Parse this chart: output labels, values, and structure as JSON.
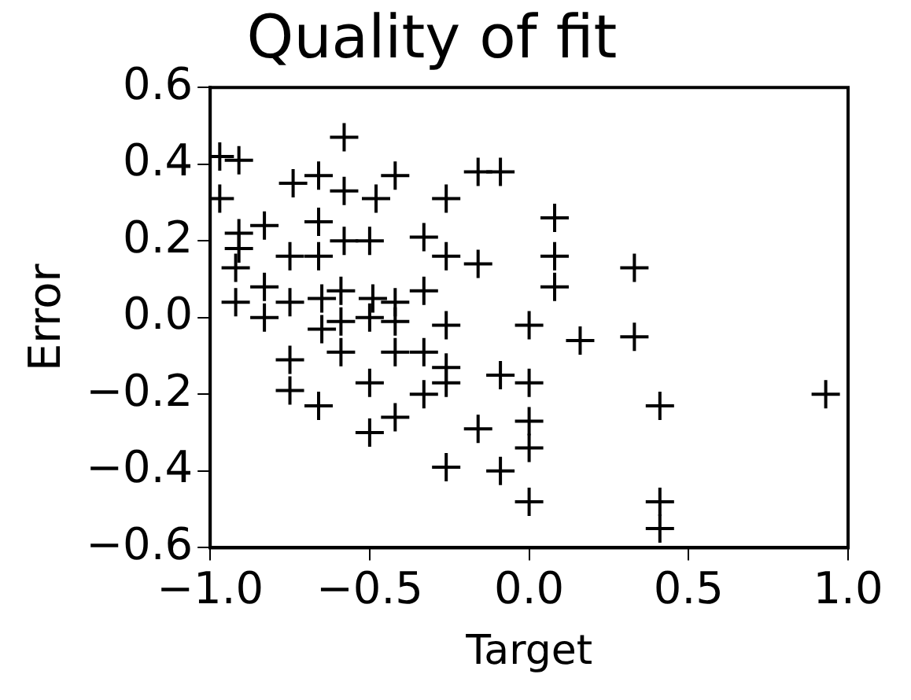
{
  "chart_data": {
    "type": "scatter",
    "title": "Quality of fit",
    "xlabel": "Target",
    "ylabel": "Error",
    "xlim": [
      -1,
      1
    ],
    "xticks": [
      {
        "value": -1,
        "label": "−1.0"
      },
      {
        "value": -0.5,
        "label": "−0.5"
      },
      {
        "value": 0,
        "label": "0.0"
      },
      {
        "value": 0.5,
        "label": "0.5"
      },
      {
        "value": 1,
        "label": "1.0"
      }
    ],
    "ylim": [
      -0.6,
      0.6
    ],
    "yticks": [
      {
        "value": -0.6,
        "label": "−0.6"
      },
      {
        "value": -0.4,
        "label": "−0.4"
      },
      {
        "value": -0.2,
        "label": "−0.2"
      },
      {
        "value": 0,
        "label": "0.0"
      },
      {
        "value": 0.2,
        "label": "0.2"
      },
      {
        "value": 0.4,
        "label": "0.4"
      },
      {
        "value": 0.6,
        "label": "0.6"
      }
    ],
    "grid": false,
    "legend": false,
    "marker": "cross",
    "series": [
      {
        "color": "#000000",
        "x": [
          -0.58,
          -0.91,
          -0.74,
          -0.66,
          -0.58,
          -0.48,
          -0.42,
          -0.26,
          -0.16,
          -0.97,
          -0.97,
          -0.66,
          -0.83,
          -0.91,
          -0.91,
          -0.92,
          -0.75,
          -0.66,
          -0.5,
          -0.58,
          -0.33,
          -0.26,
          -0.16,
          -0.83,
          -0.92,
          -0.83,
          -0.75,
          -0.65,
          -0.59,
          -0.59,
          -0.65,
          -0.49,
          -0.5,
          -0.42,
          -0.33,
          -0.42,
          -0.26,
          -0.59,
          -0.75,
          -0.75,
          -0.66,
          -0.5,
          -0.42,
          -0.42,
          -0.33,
          -0.33,
          -0.26,
          -0.26,
          -0.5,
          -0.16,
          -0.26,
          -0.09,
          -0.09,
          -0.09,
          0.08,
          0.08,
          0.08,
          0.33,
          0,
          0.16,
          0.33,
          0,
          0.41,
          0,
          0,
          0,
          0.41,
          0.41,
          0.93
        ],
        "values": [
          0.47,
          0.41,
          0.35,
          0.37,
          0.33,
          0.31,
          0.37,
          0.31,
          0.38,
          0.42,
          0.31,
          0.25,
          0.24,
          0.22,
          0.18,
          0.13,
          0.16,
          0.16,
          0.2,
          0.2,
          0.21,
          0.16,
          0.14,
          0.08,
          0.04,
          0,
          0.04,
          0.05,
          0.07,
          -0.01,
          -0.03,
          0.05,
          0,
          0.04,
          0.07,
          -0.01,
          -0.02,
          -0.09,
          -0.11,
          -0.19,
          -0.23,
          -0.17,
          -0.09,
          -0.26,
          -0.09,
          -0.2,
          -0.13,
          -0.17,
          -0.3,
          -0.29,
          -0.39,
          -0.15,
          -0.4,
          0.38,
          0.26,
          0.16,
          0.08,
          0.13,
          -0.02,
          -0.06,
          -0.05,
          -0.17,
          -0.23,
          -0.27,
          -0.34,
          -0.48,
          -0.48,
          -0.55,
          -0.2
        ]
      }
    ]
  }
}
